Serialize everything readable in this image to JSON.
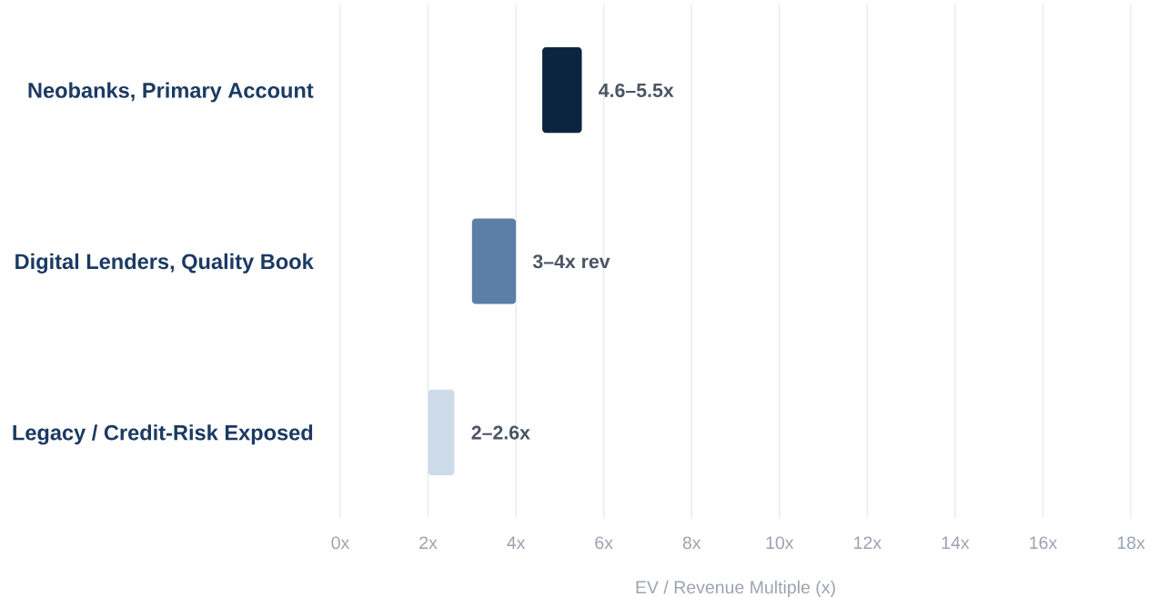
{
  "chart_data": {
    "type": "bar",
    "orientation": "horizontal",
    "categories": [
      "Neobanks, Primary Account",
      "Digital Lenders, Quality Book",
      "Legacy / Credit-Risk Exposed"
    ],
    "base": [
      4.6,
      3,
      2
    ],
    "values": [
      0.9,
      1,
      0.6
    ],
    "colors": [
      "#0b2540",
      "#5b7fa6",
      "#cddbe8"
    ],
    "value_labels": [
      "4.6–5.5x",
      "3–4x rev",
      "2–2.6x"
    ],
    "xlabel": "EV / Revenue Multiple (x)",
    "xlim": [
      0,
      18
    ],
    "xticks": [
      {
        "value": 0,
        "label": "0x"
      },
      {
        "value": 2,
        "label": "2x"
      },
      {
        "value": 4,
        "label": "4x"
      },
      {
        "value": 6,
        "label": "6x"
      },
      {
        "value": 8,
        "label": "8x"
      },
      {
        "value": 10,
        "label": "10x"
      },
      {
        "value": 12,
        "label": "12x"
      },
      {
        "value": 14,
        "label": "14x"
      },
      {
        "value": 16,
        "label": "16x"
      },
      {
        "value": 18,
        "label": "18x"
      }
    ],
    "grid": "x"
  }
}
